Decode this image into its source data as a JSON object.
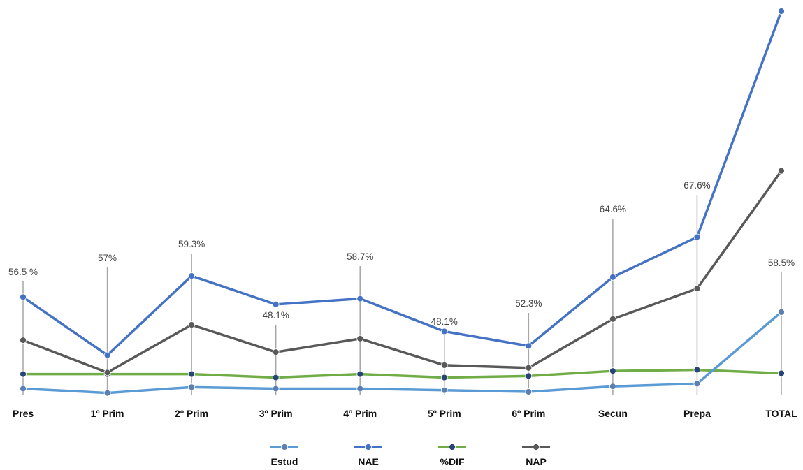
{
  "chart_data": {
    "type": "line",
    "title": "",
    "xlabel": "",
    "ylabel": "",
    "categories": [
      "Pres",
      "1º Prim",
      "2º Prim",
      "3º Prim",
      "4º Prim",
      "5º Prim",
      "6º Prim",
      "Secun",
      "Prepa",
      "TOTAL"
    ],
    "ylim": [
      0,
      100
    ],
    "grid": false,
    "legend_position": "bottom",
    "series": [
      {
        "name": "Estud",
        "color": "#5b9bd5",
        "marker_color": "#5a7fb0",
        "values": [
          1.9,
          0.8,
          2.3,
          1.9,
          1.9,
          1.5,
          1.1,
          2.5,
          3.2,
          21.8
        ]
      },
      {
        "name": "NAE",
        "color": "#4472c4",
        "marker_color": "#4472c4",
        "values": [
          25.7,
          10.6,
          31.2,
          23.8,
          25.3,
          16.8,
          13.0,
          30.9,
          41.3,
          100.0
        ]
      },
      {
        "name": "%DIF",
        "color": "#70ad47",
        "marker_color": "#264478",
        "values": [
          5.7,
          5.7,
          5.7,
          4.8,
          5.7,
          4.8,
          5.2,
          6.5,
          6.8,
          5.9
        ]
      },
      {
        "name": "NAP",
        "color": "#595959",
        "marker_color": "#595959",
        "values": [
          14.5,
          6.1,
          18.5,
          11.4,
          14.9,
          8.0,
          7.3,
          20.0,
          27.9,
          58.5
        ]
      }
    ],
    "annotations": [
      "56.5 %",
      "57%",
      "59.3%",
      "48.1%",
      "58.7%",
      "48.1%",
      "52.3%",
      "64.6%",
      "67.6%",
      "58.5%"
    ]
  }
}
